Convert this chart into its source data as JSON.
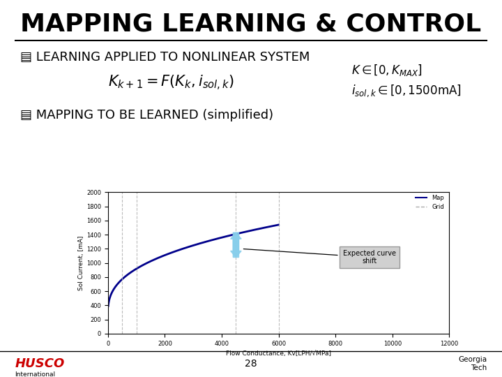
{
  "title": "MAPPING LEARNING & CONTROL",
  "bullet1": "LEARNING APPLIED TO NONLINEAR SYSTEM",
  "bullet2": "MAPPING TO BE LEARNED (simplified)",
  "formula": "$K_{k+1} = F\\left(K_k, i_{sol,k}\\right)$",
  "constraint1": "$K \\in [0, K_{MAX}]$",
  "constraint2": "$i_{sol,k} \\in [0, 1500\\mathrm{mA}]$",
  "xlabel": "Flow Conductance, Kv[LPH/√MPa]",
  "ylabel": "Sol Current, [mA]",
  "legend_map": "Map",
  "legend_grid": "Grid",
  "annotation": "Expected curve\nshift",
  "page_number": "28",
  "footer_left": "HUSCO",
  "footer_left2": "International",
  "footer_right": "Georgia\nTech",
  "bg_color": "#ffffff",
  "plot_bg": "#ffffff",
  "title_fontsize": 26,
  "bullet_fontsize": 13,
  "formula_fontsize": 15,
  "constraint_fontsize": 12,
  "curve_color": "#00008B",
  "grid_line_color": "#aaaaaa",
  "arrow_color": "#87CEEB",
  "annotation_box_color": "#d0d0d0",
  "xmin": 0,
  "xmax": 12000,
  "ymin": 0,
  "ymax": 2000,
  "xticks": [
    0,
    2000,
    4000,
    6000,
    8000,
    10000,
    12000
  ],
  "yticks": [
    0,
    200,
    400,
    600,
    800,
    1000,
    1200,
    1400,
    1600,
    1800,
    2000
  ],
  "vertical_lines": [
    500,
    1000,
    4500,
    6000
  ]
}
